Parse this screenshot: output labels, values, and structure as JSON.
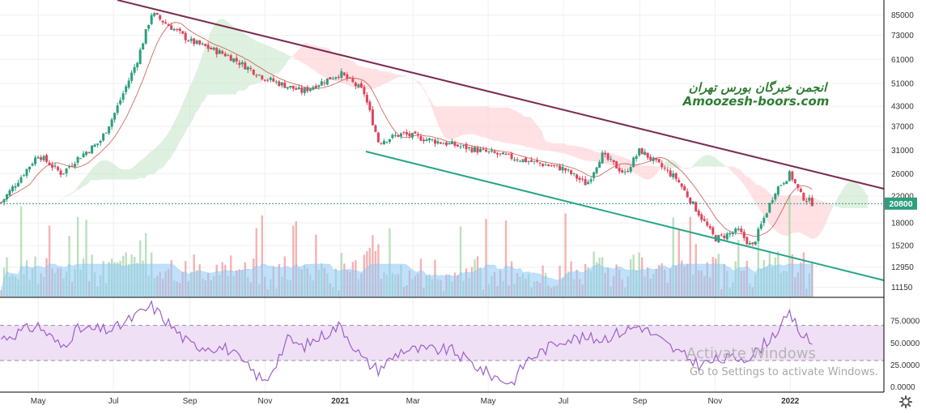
{
  "chart_data": [
    {
      "type": "candlestick",
      "panel": "price",
      "y_axis_ticks": [
        "85000",
        "73000",
        "61000",
        "51000",
        "43000",
        "37000",
        "31000",
        "26000",
        "22000",
        "18000",
        "15200",
        "12950",
        "11150"
      ],
      "y_axis_tick_values": [
        85000,
        73000,
        61000,
        51000,
        43000,
        37000,
        31000,
        26000,
        22000,
        18000,
        15200,
        12950,
        11150
      ],
      "scale": "log",
      "last_price_label": "20800",
      "last_price": 20800,
      "x_axis_ticks": [
        "May",
        "Jul",
        "Sep",
        "Nov",
        "2021",
        "Mar",
        "May",
        "Jul",
        "Sep",
        "Nov",
        "2022"
      ],
      "approx_close_path": [
        {
          "date": "2020-04",
          "close": 21000
        },
        {
          "date": "2020-05",
          "close": 30000
        },
        {
          "date": "2020-05-20",
          "close": 26000
        },
        {
          "date": "2020-06",
          "close": 29000
        },
        {
          "date": "2020-06-20",
          "close": 33000
        },
        {
          "date": "2020-07",
          "close": 40000
        },
        {
          "date": "2020-07-20",
          "close": 60000
        },
        {
          "date": "2020-08",
          "close": 86000
        },
        {
          "date": "2020-08-20",
          "close": 76000
        },
        {
          "date": "2020-09",
          "close": 70000
        },
        {
          "date": "2020-10",
          "close": 63000
        },
        {
          "date": "2020-11",
          "close": 53000
        },
        {
          "date": "2020-12",
          "close": 48000
        },
        {
          "date": "2021-01",
          "close": 55000
        },
        {
          "date": "2021-01-20",
          "close": 48000
        },
        {
          "date": "2021-02",
          "close": 33000
        },
        {
          "date": "2021-02-20",
          "close": 35000
        },
        {
          "date": "2021-07",
          "close": 27000
        },
        {
          "date": "2021-07-20",
          "close": 24000
        },
        {
          "date": "2021-08",
          "close": 30000
        },
        {
          "date": "2021-08-20",
          "close": 26000
        },
        {
          "date": "2021-09",
          "close": 31000
        },
        {
          "date": "2021-10",
          "close": 25000
        },
        {
          "date": "2021-10-20",
          "close": 19000
        },
        {
          "date": "2021-11",
          "close": 16000
        },
        {
          "date": "2021-11-20",
          "close": 17000
        },
        {
          "date": "2021-12",
          "close": 15000
        },
        {
          "date": "2021-12-20",
          "close": 23000
        },
        {
          "date": "2022-01",
          "close": 26000
        },
        {
          "date": "2022-01-10",
          "close": 22000
        },
        {
          "date": "2022-01-20",
          "close": 20800
        }
      ],
      "overlays": [
        "ichimoku-cloud",
        "baseline",
        "descending-resistance-trendline",
        "descending-support-trendline",
        "volume",
        "volume-average"
      ],
      "trendline_resistance_color": "#7b2d50",
      "trendline_support_color": "#26a58a",
      "candle_up_color": "#2e9e7e",
      "candle_down_color": "#e0435b",
      "cloud_bull_color": "#c8e6c9",
      "cloud_bear_color": "#ffcdd2",
      "volume_avg_color": "#90caf9"
    },
    {
      "type": "line",
      "panel": "rsi",
      "y_axis_ticks": [
        "75.0000",
        "50.0000",
        "25.0000",
        "0.0000"
      ],
      "y_axis_tick_values": [
        75,
        50,
        25,
        0
      ],
      "upper_band": 70,
      "lower_band": 30,
      "line_color": "#9c5fc9",
      "band_fill_color": "#efe0f5",
      "approx_values": [
        {
          "date": "2020-04",
          "value": 55
        },
        {
          "date": "2020-05",
          "value": 70
        },
        {
          "date": "2020-05-20",
          "value": 45
        },
        {
          "date": "2020-06",
          "value": 65
        },
        {
          "date": "2020-07",
          "value": 65
        },
        {
          "date": "2020-08",
          "value": 92
        },
        {
          "date": "2020-08-20",
          "value": 65
        },
        {
          "date": "2020-09",
          "value": 48
        },
        {
          "date": "2020-10",
          "value": 44
        },
        {
          "date": "2020-10-20",
          "value": 20
        },
        {
          "date": "2020-11",
          "value": 5
        },
        {
          "date": "2020-11-20",
          "value": 55
        },
        {
          "date": "2020-12",
          "value": 45
        },
        {
          "date": "2021-01",
          "value": 70
        },
        {
          "date": "2021-01-20",
          "value": 30
        },
        {
          "date": "2021-02",
          "value": 20
        },
        {
          "date": "2021-02-20",
          "value": 42
        },
        {
          "date": "2021-04",
          "value": 42
        },
        {
          "date": "2021-05",
          "value": 15
        },
        {
          "date": "2021-05-20",
          "value": 4
        },
        {
          "date": "2021-06",
          "value": 30
        },
        {
          "date": "2021-07",
          "value": 55
        },
        {
          "date": "2021-08",
          "value": 55
        },
        {
          "date": "2021-09",
          "value": 70
        },
        {
          "date": "2021-10",
          "value": 40
        },
        {
          "date": "2021-10-20",
          "value": 25
        },
        {
          "date": "2021-11",
          "value": 30
        },
        {
          "date": "2021-12",
          "value": 35
        },
        {
          "date": "2021-12-20",
          "value": 62
        },
        {
          "date": "2022-01",
          "value": 82
        },
        {
          "date": "2022-01-10",
          "value": 60
        },
        {
          "date": "2022-01-20",
          "value": 47
        }
      ]
    }
  ],
  "watermark": {
    "line1": "انجمن خبرگان بورس تهران",
    "line2": "Amoozesh-boors.com",
    "color": "#2e7d32"
  },
  "activation": {
    "title": "Activate Windows",
    "subtitle": "Go to Settings to activate Windows."
  },
  "settings_icon": "gear-icon",
  "colors": {
    "axis_text": "#333333",
    "grid": "#f0f0f0",
    "last_price_bg": "#2e9e7e",
    "last_price_line": "#2e9e7e"
  }
}
